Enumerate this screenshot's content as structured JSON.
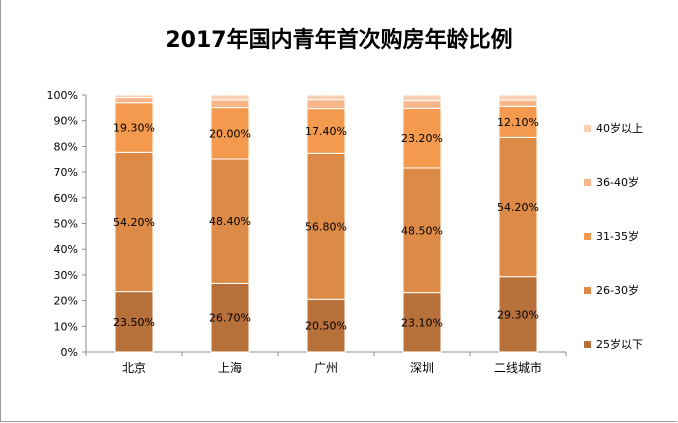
{
  "chart_data": {
    "type": "bar",
    "stacked": true,
    "normalized": true,
    "title": "2017年国内青年首次购房年龄比例",
    "xlabel": "",
    "ylabel": "",
    "ylim": [
      0,
      100
    ],
    "y_ticks": [
      "0%",
      "10%",
      "20%",
      "30%",
      "40%",
      "50%",
      "60%",
      "70%",
      "80%",
      "90%",
      "100%"
    ],
    "categories": [
      "北京",
      "上海",
      "广州",
      "深圳",
      "二线城市"
    ],
    "series": [
      {
        "name": "25岁以下",
        "color": "#b8703a",
        "values": [
          23.5,
          26.7,
          20.5,
          23.1,
          29.3
        ],
        "labels": [
          "23.50%",
          "26.70%",
          "20.50%",
          "23.10%",
          "29.30%"
        ]
      },
      {
        "name": "26-30岁",
        "color": "#dc8a45",
        "values": [
          54.2,
          48.4,
          56.8,
          48.5,
          54.2
        ],
        "labels": [
          "54.20%",
          "48.40%",
          "56.80%",
          "48.50%",
          "54.20%"
        ]
      },
      {
        "name": "31-35岁",
        "color": "#f39a4e",
        "values": [
          19.3,
          20.0,
          17.4,
          23.2,
          12.1
        ],
        "labels": [
          "19.30%",
          "20.00%",
          "17.40%",
          "23.20%",
          "12.10%"
        ]
      },
      {
        "name": "36-40岁",
        "color": "#f7b58a",
        "values": [
          2.0,
          3.0,
          3.5,
          3.0,
          2.4
        ],
        "labels": [
          "",
          "",
          "",
          "",
          ""
        ]
      },
      {
        "name": "40岁以上",
        "color": "#fad0b4",
        "values": [
          1.0,
          1.9,
          1.8,
          2.2,
          2.0
        ],
        "labels": [
          "",
          "",
          "",
          "",
          ""
        ]
      }
    ],
    "legend_position": "right",
    "legend_order": "top-to-bottom reversed",
    "grid": false
  }
}
